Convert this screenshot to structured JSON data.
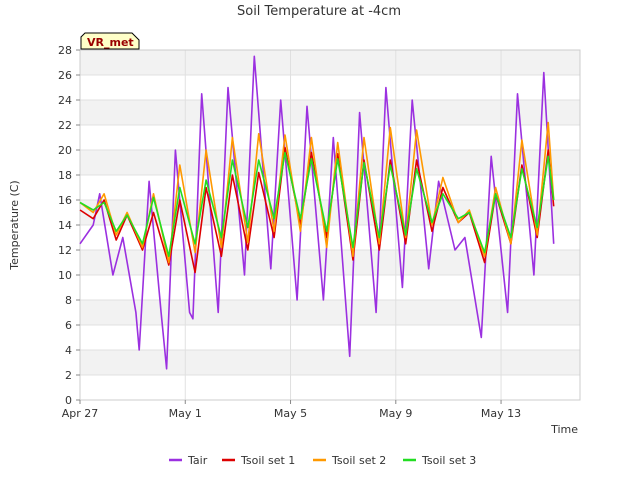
{
  "chart_data": {
    "type": "line",
    "title": "Soil Temperature at -4cm",
    "xlabel": "Time",
    "ylabel": "Temperature (C)",
    "badge": "VR_met",
    "ylim": [
      0,
      28
    ],
    "yticks": [
      "0",
      "2",
      "4",
      "6",
      "8",
      "10",
      "12",
      "14",
      "16",
      "18",
      "20",
      "22",
      "24",
      "26",
      "28"
    ],
    "xlim": [
      "2023-04-27",
      "2023-05-16"
    ],
    "xticks": [
      {
        "label": "Apr 27",
        "date": "2023-04-27"
      },
      {
        "label": "May 1",
        "date": "2023-05-01"
      },
      {
        "label": "May 5",
        "date": "2023-05-05"
      },
      {
        "label": "May 9",
        "date": "2023-05-09"
      },
      {
        "label": "May 13",
        "date": "2023-05-13"
      }
    ],
    "grid": true,
    "legend_position": "bottom-center",
    "series": [
      {
        "name": "Tair",
        "color": "#9b30e0",
        "x": [
          "2023-04-27 00:00",
          "2023-04-27 12:00",
          "2023-04-27 18:00",
          "2023-04-28 06:00",
          "2023-04-28 15:00",
          "2023-04-29 03:00",
          "2023-04-29 06:00",
          "2023-04-29 15:00",
          "2023-04-30 02:00",
          "2023-04-30 07:00",
          "2023-04-30 15:00",
          "2023-05-01 04:00",
          "2023-05-01 07:00",
          "2023-05-01 15:00",
          "2023-05-02 06:00",
          "2023-05-02 15:00",
          "2023-05-03 06:00",
          "2023-05-03 15:00",
          "2023-05-04 06:00",
          "2023-05-04 15:00",
          "2023-05-05 06:00",
          "2023-05-05 15:00",
          "2023-05-06 06:00",
          "2023-05-06 15:00",
          "2023-05-07 06:00",
          "2023-05-07 15:00",
          "2023-05-08 06:00",
          "2023-05-08 15:00",
          "2023-05-09 06:00",
          "2023-05-09 15:00",
          "2023-05-10 06:00",
          "2023-05-10 15:00",
          "2023-05-11 06:00",
          "2023-05-11 15:00",
          "2023-05-12 06:00",
          "2023-05-12 15:00",
          "2023-05-13 06:00",
          "2023-05-13 15:00",
          "2023-05-14 06:00",
          "2023-05-14 15:00",
          "2023-05-15 00:00"
        ],
        "y": [
          12.5,
          14.0,
          16.5,
          10.0,
          13.0,
          7.0,
          4.0,
          17.5,
          7.0,
          2.5,
          20.0,
          7.0,
          6.5,
          24.5,
          7.0,
          25.0,
          10.0,
          27.5,
          10.5,
          24.0,
          8.0,
          23.5,
          8.0,
          21.0,
          3.5,
          23.0,
          7.0,
          25.0,
          9.0,
          24.0,
          10.5,
          17.5,
          12.0,
          13.0,
          5.0,
          19.5,
          7.0,
          24.5,
          10.0,
          26.2,
          12.5
        ]
      },
      {
        "name": "Tsoil set 1",
        "color": "#dd0000",
        "x": [
          "2023-04-27 00:00",
          "2023-04-27 12:00",
          "2023-04-27 22:00",
          "2023-04-28 09:00",
          "2023-04-28 19:00",
          "2023-04-29 09:00",
          "2023-04-29 19:00",
          "2023-04-30 09:00",
          "2023-04-30 19:00",
          "2023-05-01 09:00",
          "2023-05-01 19:00",
          "2023-05-02 09:00",
          "2023-05-02 19:00",
          "2023-05-03 09:00",
          "2023-05-03 19:00",
          "2023-05-04 09:00",
          "2023-05-04 19:00",
          "2023-05-05 09:00",
          "2023-05-05 19:00",
          "2023-05-06 09:00",
          "2023-05-06 19:00",
          "2023-05-07 09:00",
          "2023-05-07 19:00",
          "2023-05-08 09:00",
          "2023-05-08 19:00",
          "2023-05-09 09:00",
          "2023-05-09 19:00",
          "2023-05-10 09:00",
          "2023-05-10 19:00",
          "2023-05-11 09:00",
          "2023-05-11 19:00",
          "2023-05-12 09:00",
          "2023-05-12 19:00",
          "2023-05-13 09:00",
          "2023-05-13 19:00",
          "2023-05-14 09:00",
          "2023-05-14 19:00",
          "2023-05-15 00:00"
        ],
        "y": [
          15.2,
          14.5,
          16.0,
          12.8,
          14.8,
          12.0,
          15.0,
          10.8,
          16.0,
          10.2,
          17.0,
          11.5,
          18.0,
          12.0,
          18.2,
          13.0,
          20.2,
          14.0,
          19.8,
          13.0,
          19.7,
          11.2,
          19.2,
          12.0,
          19.2,
          12.5,
          19.2,
          13.5,
          17.0,
          14.2,
          15.0,
          11.0,
          16.5,
          12.5,
          18.8,
          13.0,
          20.0,
          15.5
        ]
      },
      {
        "name": "Tsoil set 2",
        "color": "#ff9900",
        "x": [
          "2023-04-27 00:00",
          "2023-04-27 12:00",
          "2023-04-27 22:00",
          "2023-04-28 09:00",
          "2023-04-28 19:00",
          "2023-04-29 09:00",
          "2023-04-29 19:00",
          "2023-04-30 09:00",
          "2023-04-30 19:00",
          "2023-05-01 09:00",
          "2023-05-01 19:00",
          "2023-05-02 09:00",
          "2023-05-02 19:00",
          "2023-05-03 09:00",
          "2023-05-03 19:00",
          "2023-05-04 09:00",
          "2023-05-04 19:00",
          "2023-05-05 09:00",
          "2023-05-05 19:00",
          "2023-05-06 09:00",
          "2023-05-06 19:00",
          "2023-05-07 09:00",
          "2023-05-07 19:00",
          "2023-05-08 09:00",
          "2023-05-08 19:00",
          "2023-05-09 09:00",
          "2023-05-09 19:00",
          "2023-05-10 09:00",
          "2023-05-10 19:00",
          "2023-05-11 09:00",
          "2023-05-11 19:00",
          "2023-05-12 09:00",
          "2023-05-12 19:00",
          "2023-05-13 09:00",
          "2023-05-13 19:00",
          "2023-05-14 09:00",
          "2023-05-14 19:00",
          "2023-05-15 00:00"
        ],
        "y": [
          15.8,
          15.0,
          16.5,
          13.2,
          15.0,
          12.2,
          16.5,
          11.0,
          18.8,
          11.8,
          20.0,
          12.2,
          21.0,
          12.6,
          21.3,
          13.5,
          21.2,
          13.5,
          21.0,
          12.2,
          20.6,
          11.5,
          21.0,
          12.5,
          21.8,
          13.0,
          21.6,
          14.0,
          17.8,
          14.2,
          15.2,
          11.5,
          17.0,
          12.5,
          20.8,
          13.2,
          22.2,
          16.0
        ]
      },
      {
        "name": "Tsoil set 3",
        "color": "#22dd22",
        "x": [
          "2023-04-27 00:00",
          "2023-04-27 12:00",
          "2023-04-27 22:00",
          "2023-04-28 09:00",
          "2023-04-28 19:00",
          "2023-04-29 09:00",
          "2023-04-29 19:00",
          "2023-04-30 09:00",
          "2023-04-30 19:00",
          "2023-05-01 09:00",
          "2023-05-01 19:00",
          "2023-05-02 09:00",
          "2023-05-02 19:00",
          "2023-05-03 09:00",
          "2023-05-03 19:00",
          "2023-05-04 09:00",
          "2023-05-04 19:00",
          "2023-05-05 09:00",
          "2023-05-05 19:00",
          "2023-05-06 09:00",
          "2023-05-06 19:00",
          "2023-05-07 09:00",
          "2023-05-07 19:00",
          "2023-05-08 09:00",
          "2023-05-08 19:00",
          "2023-05-09 09:00",
          "2023-05-09 19:00",
          "2023-05-10 09:00",
          "2023-05-10 19:00",
          "2023-05-11 09:00",
          "2023-05-11 19:00",
          "2023-05-12 09:00",
          "2023-05-12 19:00",
          "2023-05-13 09:00",
          "2023-05-13 19:00",
          "2023-05-14 09:00",
          "2023-05-14 19:00",
          "2023-05-15 00:00"
        ],
        "y": [
          15.8,
          15.2,
          15.8,
          13.5,
          14.8,
          12.5,
          16.2,
          11.5,
          17.0,
          12.5,
          17.6,
          13.0,
          19.2,
          13.8,
          19.2,
          14.5,
          19.8,
          14.5,
          19.3,
          13.5,
          19.3,
          12.2,
          19.0,
          13.0,
          18.8,
          13.2,
          18.5,
          14.2,
          16.5,
          14.5,
          15.0,
          11.8,
          16.5,
          13.0,
          18.5,
          13.8,
          19.5,
          16.0
        ]
      }
    ]
  }
}
